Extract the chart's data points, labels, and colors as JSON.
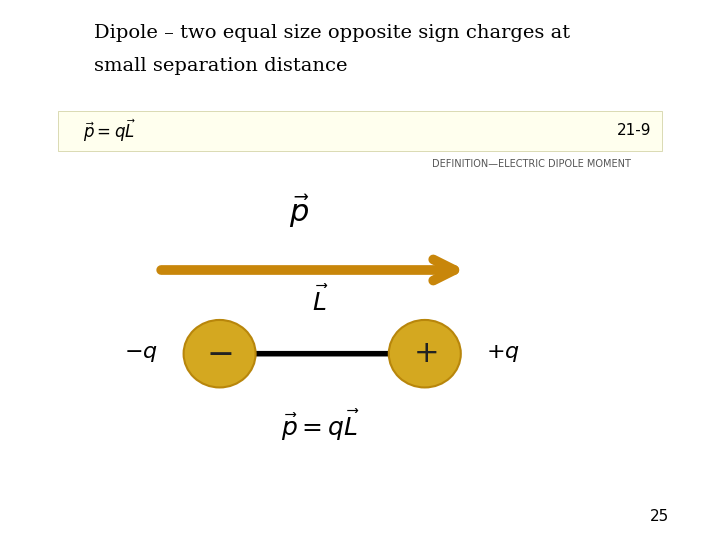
{
  "title_line1": "Dipole – two equal size opposite sign charges at",
  "title_line2": "small separation distance",
  "title_fontsize": 14,
  "background_color": "#ffffff",
  "box_color": "#ffffee",
  "box_number": "21-9",
  "definition_text": "DEFINITION—ELECTRIC DIPOLE MOMENT",
  "arrow_color": "#c8860a",
  "charge_fill": "#d4a820",
  "charge_edge": "#b8860b",
  "page_number": "25"
}
